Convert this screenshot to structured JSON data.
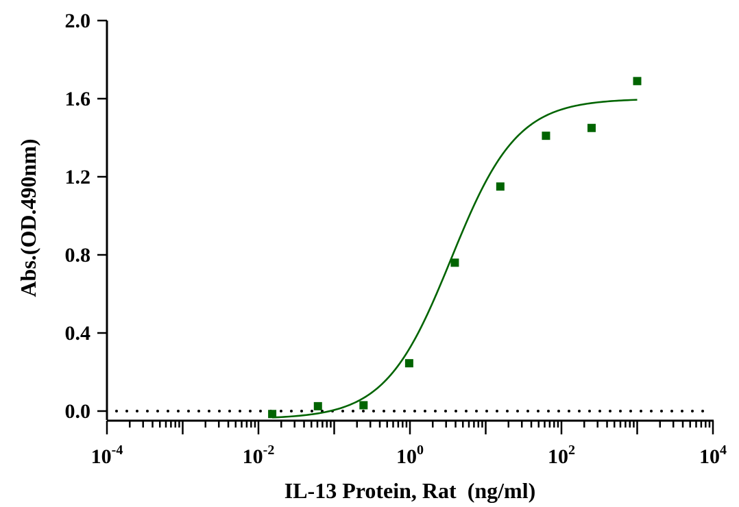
{
  "chart_data": {
    "type": "scatter",
    "title": "",
    "xlabel": "IL-13 Protein, Rat  (ng/ml)",
    "ylabel": "Abs.(OD.490nm)",
    "x_scale": "log10",
    "xlim": [
      0.0001,
      10000
    ],
    "ylim": [
      0,
      2.0
    ],
    "x_ticks": [
      {
        "base": "10",
        "exp": "-4"
      },
      {
        "base": "10",
        "exp": "-2"
      },
      {
        "base": "10",
        "exp": "0"
      },
      {
        "base": "10",
        "exp": "2"
      },
      {
        "base": "10",
        "exp": "4"
      }
    ],
    "y_ticks": [
      "0.0",
      "0.4",
      "0.8",
      "1.2",
      "1.6",
      "2.0"
    ],
    "series": [
      {
        "color": "#006400",
        "marker": "square",
        "points": [
          {
            "x": 0.0152,
            "y": -0.015
          },
          {
            "x": 0.061,
            "y": 0.025
          },
          {
            "x": 0.244,
            "y": 0.03
          },
          {
            "x": 0.977,
            "y": 0.245
          },
          {
            "x": 3.91,
            "y": 0.76
          },
          {
            "x": 15.6,
            "y": 1.15
          },
          {
            "x": 62.5,
            "y": 1.41
          },
          {
            "x": 250,
            "y": 1.45
          },
          {
            "x": 1000,
            "y": 1.69
          }
        ],
        "fit": {
          "model": "4PL",
          "bottom": -0.04,
          "top": 1.6,
          "ec50": 3.5,
          "hill": 1.0,
          "x_range": [
            0.0152,
            1000
          ]
        }
      }
    ],
    "baseline": {
      "y": 0,
      "style": "dotted"
    },
    "grid": false,
    "legend": "none"
  }
}
